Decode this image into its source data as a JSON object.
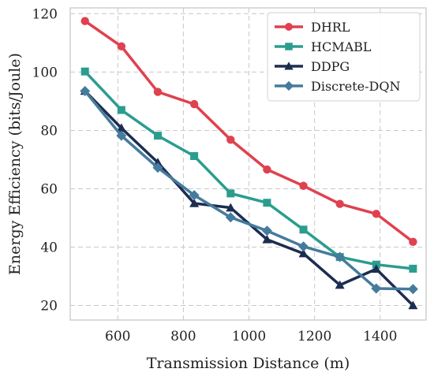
{
  "chart_data": {
    "type": "line",
    "xlabel": "Transmission Distance (m)",
    "ylabel": "Energy Efficiency (bits/Joule)",
    "xlim": [
      455,
      1540
    ],
    "ylim": [
      15,
      122
    ],
    "xticks": [
      600,
      800,
      1000,
      1200,
      1400
    ],
    "yticks": [
      20,
      40,
      60,
      80,
      100,
      120
    ],
    "grid": true,
    "legend_position": "top-right",
    "x": [
      500,
      611,
      722,
      833,
      944,
      1055,
      1166,
      1277,
      1388,
      1500
    ],
    "series": [
      {
        "name": "DHRL",
        "color": "#e0414f",
        "marker": "circle",
        "values": [
          117.5,
          108.8,
          93.2,
          89.0,
          76.8,
          66.6,
          61.0,
          54.8,
          51.4,
          41.8
        ]
      },
      {
        "name": "HCMABL",
        "color": "#2a9d8f",
        "marker": "square",
        "values": [
          100.2,
          87.0,
          78.2,
          71.2,
          58.4,
          55.2,
          46.0,
          36.6,
          34.0,
          32.6
        ]
      },
      {
        "name": "DDPG",
        "color": "#1d2d50",
        "marker": "triangle",
        "values": [
          93.5,
          80.8,
          69.0,
          55.0,
          53.5,
          42.6,
          37.8,
          27.0,
          32.5,
          20.0
        ]
      },
      {
        "name": "Discrete-DQN",
        "color": "#457b9d",
        "marker": "diamond",
        "values": [
          93.5,
          78.2,
          67.2,
          57.8,
          50.2,
          45.6,
          40.2,
          36.6,
          25.8,
          25.6
        ]
      }
    ]
  }
}
